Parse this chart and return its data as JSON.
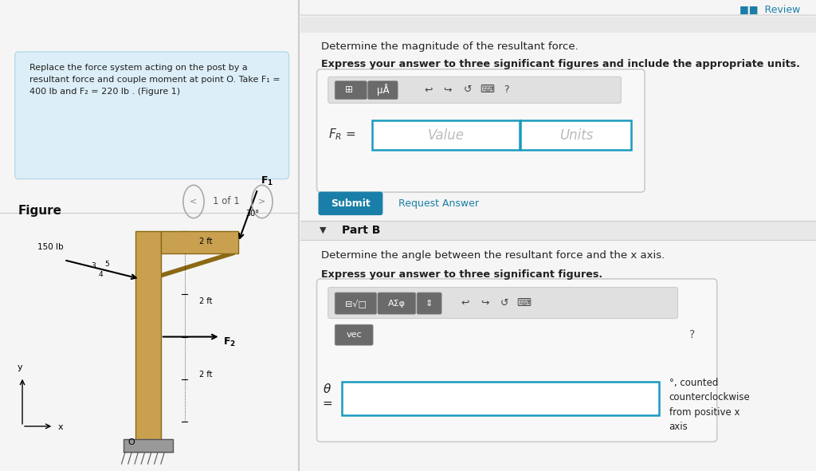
{
  "bg_color": "#f5f5f5",
  "left_panel_bg": "#ffffff",
  "right_panel_bg": "#ffffff",
  "divider_color": "#cccccc",
  "problem_box_bg": "#dceef8",
  "problem_text": "Replace the force system acting on the post by a\nresultant force and couple moment at point O. Take F₁ =\n400 lb and F₂ = 220 lb . (Figure 1)",
  "problem_text_color": "#222222",
  "figure_label": "Figure",
  "figure_nav": "1 of 1",
  "part_a_title": "Determine the magnitude of the resultant force.",
  "part_a_bold": "Express your answer to three significant figures and include the appropriate units.",
  "value_placeholder": "Value",
  "units_placeholder": "Units",
  "submit_btn_text": "Submit",
  "submit_btn_bg": "#1a7fa8",
  "submit_btn_color": "#ffffff",
  "request_answer_text": "Request Answer",
  "request_answer_color": "#1a7fa8",
  "part_b_label": "Part B",
  "part_b_title": "Determine the angle between the resultant force and the x axis.",
  "part_b_bold": "Express your answer to three significant figures.",
  "angle_note": "°, counted\ncounterclockwise\nfrom positive x\naxis",
  "review_text": "Review",
  "review_color": "#1a7fa8",
  "input_border_color": "#1a9ac0",
  "input_bg": "#ffffff"
}
